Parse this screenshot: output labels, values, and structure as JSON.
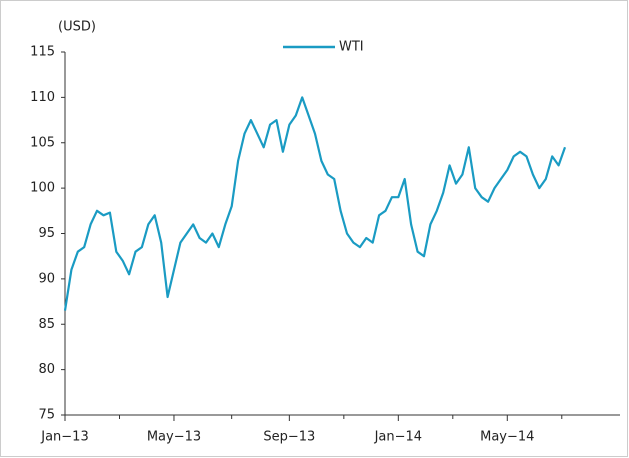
{
  "chart_data": {
    "type": "line",
    "y_axis_label": "(USD)",
    "categories": [
      "Jan−13",
      null,
      null,
      null,
      null,
      null,
      null,
      null,
      null,
      null,
      null,
      null,
      null,
      null,
      null,
      null,
      null,
      "May−13",
      null,
      null,
      null,
      null,
      null,
      null,
      null,
      null,
      null,
      null,
      null,
      null,
      null,
      null,
      null,
      null,
      null,
      "Sep−13",
      null,
      null,
      null,
      null,
      null,
      null,
      null,
      null,
      null,
      null,
      null,
      null,
      null,
      null,
      null,
      null,
      "Jan−14",
      null,
      null,
      null,
      null,
      null,
      null,
      null,
      null,
      null,
      null,
      null,
      null,
      null,
      null,
      null,
      null,
      "May−14",
      null,
      null,
      null,
      null,
      null,
      null,
      null,
      null,
      null
    ],
    "series": [
      {
        "name": "WTI",
        "color": "#1a9bc3",
        "values": [
          86.5,
          91,
          93,
          93.5,
          96,
          97.5,
          97,
          97.3,
          93,
          92,
          90.5,
          93,
          93.5,
          96,
          97,
          94,
          88,
          91,
          94,
          95,
          96,
          94.5,
          94,
          95,
          93.5,
          96,
          98,
          103,
          106,
          107.5,
          106,
          104.5,
          107,
          107.5,
          104,
          107,
          108,
          110,
          108,
          106,
          103,
          101.5,
          101,
          97.5,
          95,
          94,
          93.5,
          94.5,
          94,
          97,
          97.5,
          99,
          99,
          101,
          96,
          93,
          92.5,
          96,
          97.5,
          99.5,
          102.5,
          100.5,
          101.5,
          104.5,
          100,
          99,
          98.5,
          100,
          101,
          102,
          103.5,
          104,
          103.5,
          101.5,
          100,
          101,
          103.5,
          102.5,
          104.5
        ]
      }
    ],
    "ylim": [
      75,
      115
    ],
    "yticks": [
      75,
      80,
      85,
      90,
      95,
      100,
      105,
      110,
      115
    ],
    "grid": false,
    "legend": "top"
  }
}
